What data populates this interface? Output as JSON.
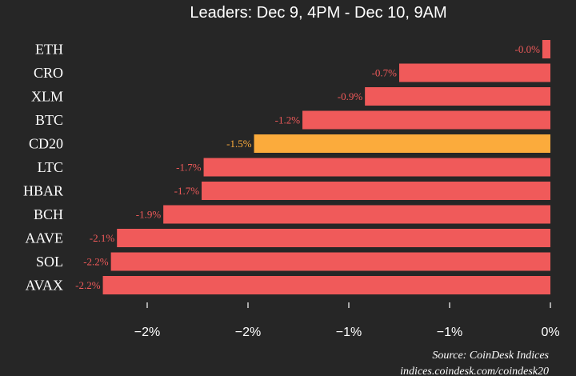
{
  "chart_data": {
    "type": "bar",
    "orientation": "horizontal",
    "title": "Leaders: Dec 9, 4PM - Dec 10, 9AM",
    "categories": [
      "ETH",
      "CRO",
      "XLM",
      "BTC",
      "CD20",
      "LTC",
      "HBAR",
      "BCH",
      "AAVE",
      "SOL",
      "AVAX"
    ],
    "values": [
      -0.04,
      -0.75,
      -0.92,
      -1.23,
      -1.47,
      -1.72,
      -1.73,
      -1.92,
      -2.15,
      -2.18,
      -2.22
    ],
    "data_labels": [
      "-0.0%",
      "-0.7%",
      "-0.9%",
      "-1.2%",
      "-1.5%",
      "-1.7%",
      "-1.7%",
      "-1.9%",
      "-2.1%",
      "-2.2%",
      "-2.2%"
    ],
    "highlight_category": "CD20",
    "xlim": [
      -2.4,
      0
    ],
    "xticks": [
      -2.0,
      -1.5,
      -1.0,
      -0.5,
      0
    ],
    "xtick_labels": [
      "−2%",
      "−2%",
      "−1%",
      "−1%",
      "0%"
    ],
    "grid": false,
    "colors": {
      "bar": "#f05a5a",
      "highlight": "#fbab3c",
      "label_default": "#f05a5a",
      "label_highlight": "#fbab3c",
      "background": "#262626"
    }
  },
  "footer": {
    "source": "Source: CoinDesk Indices",
    "url": "indices.coindesk.com/coindesk20"
  }
}
